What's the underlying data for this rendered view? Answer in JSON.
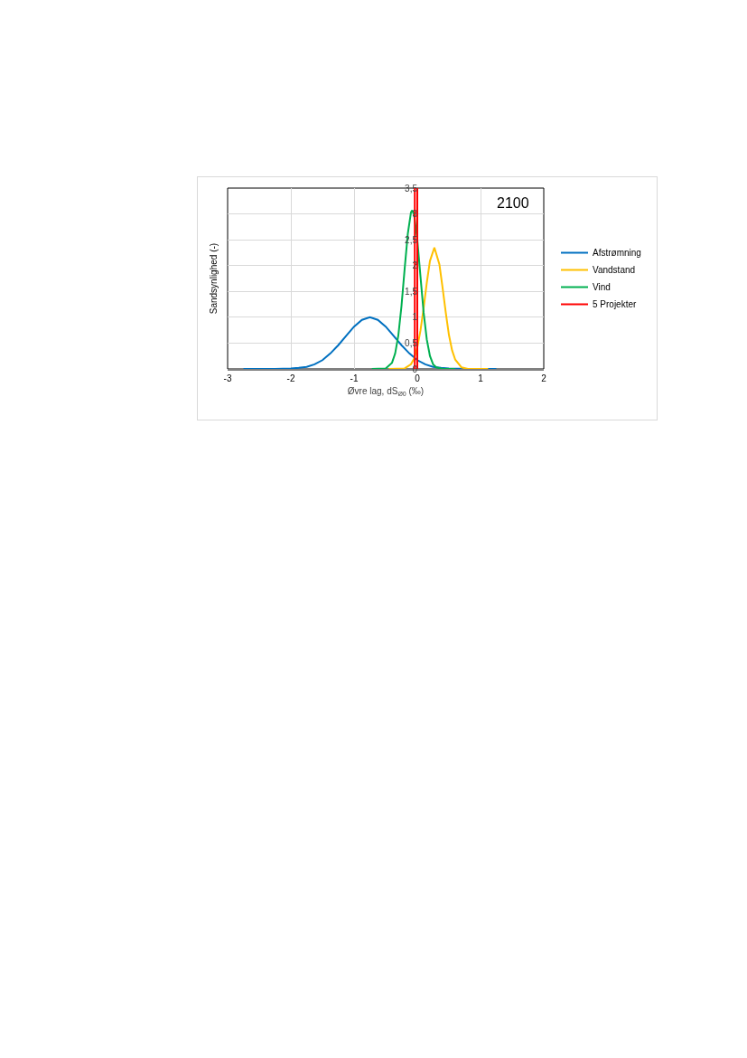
{
  "chart_data": {
    "type": "line",
    "title": "2100",
    "xlabel": "Øvre lag, dS$_{Ø0}$ (‰)",
    "ylabel": "Sandsynlighed (-)",
    "xlim": [
      -3,
      2
    ],
    "xticks": [
      -3,
      -2,
      -1,
      0,
      1,
      2
    ],
    "ylim": [
      0,
      3.5
    ],
    "yticks": [
      0,
      {
        "value": 0.5,
        "label": "0,5"
      },
      1,
      {
        "value": 1.5,
        "label": "1,5"
      },
      2,
      {
        "value": 2.5,
        "label": "2,5"
      },
      3,
      {
        "value": 3.5,
        "label": "3,5"
      }
    ],
    "grid": true,
    "legend": "right",
    "marker": "none",
    "line_style": "solid",
    "series": [
      {
        "name": "Afstrømning",
        "color": "#0070c0",
        "x": [
          -2.75,
          -2.5,
          -2.25,
          -2,
          -1.875,
          -1.75,
          -1.625,
          -1.5,
          -1.375,
          -1.25,
          -1.125,
          -1,
          -0.875,
          -0.75,
          -0.625,
          -0.5,
          -0.375,
          -0.25,
          -0.125,
          0,
          0.125,
          0.25,
          0.375,
          0.5,
          0.75,
          1.25
        ],
        "values": [
          0,
          0,
          0,
          0.01,
          0.02,
          0.04,
          0.09,
          0.17,
          0.3,
          0.46,
          0.64,
          0.82,
          0.95,
          1,
          0.95,
          0.82,
          0.64,
          0.46,
          0.3,
          0.17,
          0.09,
          0.04,
          0.02,
          0.01,
          0,
          0
        ]
      },
      {
        "name": "Vandstand",
        "color": "#ffc000",
        "x": [
          -0.45,
          -0.2,
          -0.1,
          -0.05,
          0,
          0.05,
          0.1,
          0.15,
          0.2,
          0.27,
          0.35,
          0.4,
          0.45,
          0.5,
          0.55,
          0.6,
          0.7,
          0.8,
          1.12
        ],
        "values": [
          0,
          0.01,
          0.09,
          0.2,
          0.42,
          0.74,
          1.18,
          1.67,
          2.09,
          2.35,
          2.02,
          1.57,
          1.09,
          0.66,
          0.36,
          0.18,
          0.03,
          0,
          0
        ]
      },
      {
        "name": "Vind",
        "color": "#00b050",
        "x": [
          -0.72,
          -0.5,
          -0.4,
          -0.35,
          -0.3,
          -0.25,
          -0.2,
          -0.15,
          -0.1,
          -0.08,
          -0.05,
          0,
          0.05,
          0.1,
          0.15,
          0.2,
          0.25,
          0.3,
          0.4,
          0.6
        ],
        "values": [
          0,
          0.01,
          0.12,
          0.3,
          0.65,
          1.22,
          1.94,
          2.62,
          3.03,
          3.07,
          2.98,
          2.5,
          1.79,
          1.09,
          0.57,
          0.25,
          0.09,
          0.03,
          0,
          0
        ]
      },
      {
        "name": "5 Projekter",
        "color": "#ff0000",
        "x": [
          -0.04,
          -0.04,
          null,
          0,
          0
        ],
        "values": [
          0,
          3.5,
          null,
          0,
          3.5
        ]
      }
    ]
  }
}
